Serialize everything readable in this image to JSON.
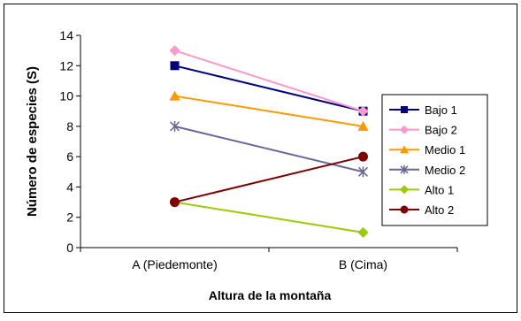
{
  "chart_data": {
    "type": "line",
    "title": "",
    "xlabel": "Altura de la montaña",
    "ylabel": "Número de especies (S)",
    "categories": [
      "A (Piedemonte)",
      "B (Cima)"
    ],
    "ylim": [
      0,
      14
    ],
    "yticks": [
      0,
      2,
      4,
      6,
      8,
      10,
      12,
      14
    ],
    "grid": false,
    "legend": "right",
    "series": [
      {
        "name": "Bajo 1",
        "values": [
          12,
          9
        ],
        "color": "#000080",
        "marker": "square"
      },
      {
        "name": "Bajo 2",
        "values": [
          13,
          9
        ],
        "color": "#ff99cc",
        "marker": "diamond"
      },
      {
        "name": "Medio 1",
        "values": [
          10,
          8
        ],
        "color": "#ff9900",
        "marker": "triangle"
      },
      {
        "name": "Medio 2",
        "values": [
          8,
          5
        ],
        "color": "#666699",
        "marker": "star"
      },
      {
        "name": "Alto 1",
        "values": [
          3,
          1
        ],
        "color": "#99cc00",
        "marker": "diamond"
      },
      {
        "name": "Alto 2",
        "values": [
          3,
          6
        ],
        "color": "#800000",
        "marker": "circle"
      }
    ]
  }
}
